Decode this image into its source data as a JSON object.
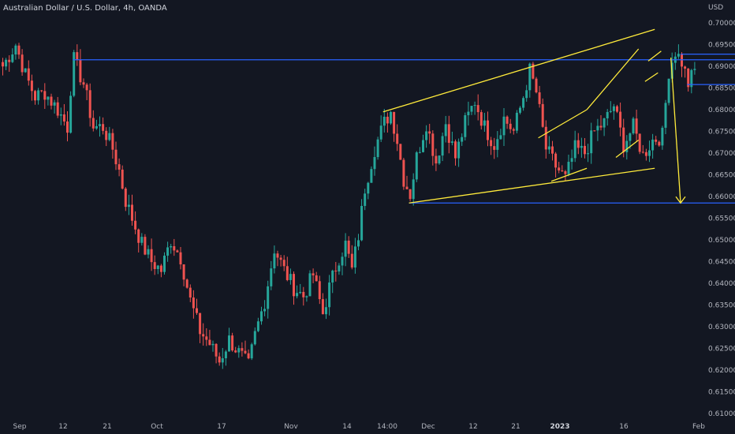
{
  "chart_data": {
    "type": "candlestick",
    "title": "Australian Dollar / U.S. Dollar, 4h, OANDA",
    "currency_label": "USD",
    "ylim": [
      0.61,
      0.705
    ],
    "y_ticks": [
      "0.70000",
      "0.69500",
      "0.69000",
      "0.68500",
      "0.68000",
      "0.67500",
      "0.67000",
      "0.66500",
      "0.66000",
      "0.65500",
      "0.65000",
      "0.64500",
      "0.64000",
      "0.63500",
      "0.63000",
      "0.62500",
      "0.62000",
      "0.61500",
      "0.61000"
    ],
    "x_ticks": [
      {
        "label": "Sep",
        "bold": false
      },
      {
        "label": "12",
        "bold": false
      },
      {
        "label": "21",
        "bold": false
      },
      {
        "label": "Oct",
        "bold": false
      },
      {
        "label": "17",
        "bold": false
      },
      {
        "label": "Nov",
        "bold": false
      },
      {
        "label": "14",
        "bold": false
      },
      {
        "label": "14:00",
        "bold": false
      },
      {
        "label": "Dec",
        "bold": false
      },
      {
        "label": "12",
        "bold": false
      },
      {
        "label": "21",
        "bold": false
      },
      {
        "label": "2023",
        "bold": true
      },
      {
        "label": "16",
        "bold": false
      },
      {
        "label": "Feb",
        "bold": false
      }
    ],
    "price_path": [
      [
        0,
        0.69
      ],
      [
        4,
        0.695
      ],
      [
        7,
        0.688
      ],
      [
        10,
        0.683
      ],
      [
        13,
        0.684
      ],
      [
        17,
        0.68
      ],
      [
        20,
        0.676
      ],
      [
        21,
        0.685
      ],
      [
        22,
        0.6915
      ],
      [
        25,
        0.686
      ],
      [
        28,
        0.676
      ],
      [
        31,
        0.676
      ],
      [
        34,
        0.671
      ],
      [
        36,
        0.666
      ],
      [
        38,
        0.659
      ],
      [
        40,
        0.655
      ],
      [
        43,
        0.649
      ],
      [
        46,
        0.645
      ],
      [
        49,
        0.643
      ],
      [
        52,
        0.65
      ],
      [
        55,
        0.646
      ],
      [
        58,
        0.636
      ],
      [
        61,
        0.629
      ],
      [
        64,
        0.626
      ],
      [
        67,
        0.622
      ],
      [
        70,
        0.627
      ],
      [
        73,
        0.624
      ],
      [
        76,
        0.621
      ],
      [
        78,
        0.628
      ],
      [
        81,
        0.636
      ],
      [
        84,
        0.648
      ],
      [
        87,
        0.643
      ],
      [
        90,
        0.639
      ],
      [
        93,
        0.637
      ],
      [
        96,
        0.642
      ],
      [
        99,
        0.633
      ],
      [
        101,
        0.639
      ],
      [
        104,
        0.646
      ],
      [
        106,
        0.649
      ],
      [
        108,
        0.643
      ],
      [
        110,
        0.651
      ],
      [
        112,
        0.662
      ],
      [
        115,
        0.671
      ],
      [
        118,
        0.677
      ],
      [
        120,
        0.6795
      ],
      [
        122,
        0.673
      ],
      [
        124,
        0.664
      ],
      [
        126,
        0.6605
      ],
      [
        128,
        0.669
      ],
      [
        131,
        0.677
      ],
      [
        134,
        0.668
      ],
      [
        137,
        0.677
      ],
      [
        140,
        0.669
      ],
      [
        143,
        0.677
      ],
      [
        146,
        0.682
      ],
      [
        149,
        0.676
      ],
      [
        152,
        0.672
      ],
      [
        155,
        0.678
      ],
      [
        158,
        0.675
      ],
      [
        161,
        0.683
      ],
      [
        163,
        0.689
      ],
      [
        165,
        0.684
      ],
      [
        168,
        0.671
      ],
      [
        171,
        0.667
      ],
      [
        174,
        0.664
      ],
      [
        177,
        0.671
      ],
      [
        180,
        0.67
      ],
      [
        183,
        0.675
      ],
      [
        186,
        0.677
      ],
      [
        189,
        0.681
      ],
      [
        192,
        0.672
      ],
      [
        195,
        0.676
      ],
      [
        198,
        0.6695
      ],
      [
        201,
        0.673
      ],
      [
        204,
        0.674
      ],
      [
        206,
        0.689
      ],
      [
        208,
        0.6935
      ],
      [
        210,
        0.691
      ],
      [
        212,
        0.686
      ],
      [
        214,
        0.689
      ]
    ],
    "annotations": {
      "hlines": [
        {
          "y": 0.6915,
          "x0": 22,
          "x1": 222,
          "color": "#2962ff"
        },
        {
          "y": 0.6928,
          "x0": 210,
          "x1": 222,
          "color": "#2962ff"
        },
        {
          "y": 0.6858,
          "x0": 212,
          "x1": 222,
          "color": "#2962ff"
        },
        {
          "y": 0.6585,
          "x0": 126,
          "x1": 222,
          "color": "#2962ff"
        }
      ],
      "trendlines": [
        {
          "x0": 118,
          "y0": 0.6795,
          "x1": 202,
          "y1": 0.6985,
          "color": "#ffeb3b"
        },
        {
          "x0": 126,
          "y0": 0.6585,
          "x1": 202,
          "y1": 0.6665,
          "color": "#ffeb3b"
        },
        {
          "x0": 166,
          "y0": 0.6735,
          "x1": 181,
          "y1": 0.68,
          "color": "#ffeb3b"
        },
        {
          "x0": 170,
          "y0": 0.6635,
          "x1": 181,
          "y1": 0.6665,
          "color": "#ffeb3b"
        },
        {
          "x0": 181,
          "y0": 0.68,
          "x1": 197,
          "y1": 0.694,
          "color": "#ffeb3b"
        },
        {
          "x0": 190,
          "y0": 0.669,
          "x1": 197,
          "y1": 0.673,
          "color": "#ffeb3b"
        },
        {
          "x0": 200,
          "y0": 0.6912,
          "x1": 204,
          "y1": 0.6935,
          "color": "#ffeb3b"
        },
        {
          "x0": 199,
          "y0": 0.6865,
          "x1": 203,
          "y1": 0.6885,
          "color": "#ffeb3b"
        },
        {
          "x0": 207,
          "y0": 0.692,
          "x1": 210,
          "y1": 0.6585,
          "color": "#ffeb3b",
          "arrow": true
        }
      ]
    },
    "colors": {
      "up": "#26a69a",
      "down": "#ef5350",
      "background": "#131722"
    }
  }
}
